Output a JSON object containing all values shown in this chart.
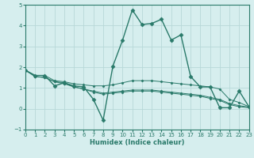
{
  "xlabel": "Humidex (Indice chaleur)",
  "ylabel": "",
  "xlim": [
    0,
    23
  ],
  "ylim": [
    -1,
    5
  ],
  "yticks": [
    -1,
    0,
    1,
    2,
    3,
    4,
    5
  ],
  "xticks": [
    0,
    1,
    2,
    3,
    4,
    5,
    6,
    7,
    8,
    9,
    10,
    11,
    12,
    13,
    14,
    15,
    16,
    17,
    18,
    19,
    20,
    21,
    22,
    23
  ],
  "background_color": "#d6eeee",
  "grid_color": "#b8d8d8",
  "line_color": "#2a7a6a",
  "lines": [
    {
      "x": [
        0,
        1,
        2,
        3,
        4,
        5,
        6,
        7,
        8,
        9,
        10,
        11,
        12,
        13,
        14,
        15,
        16,
        17,
        18,
        19,
        20,
        21,
        22,
        23
      ],
      "y": [
        1.85,
        1.6,
        1.6,
        1.1,
        1.25,
        1.1,
        1.05,
        0.45,
        -0.55,
        2.05,
        3.3,
        4.75,
        4.05,
        4.1,
        4.3,
        3.3,
        3.55,
        1.55,
        1.05,
        1.05,
        0.05,
        0.05,
        0.85,
        0.1
      ],
      "marker": "D",
      "markersize": 2.5,
      "linewidth": 1.0
    },
    {
      "x": [
        0,
        1,
        2,
        3,
        4,
        5,
        6,
        7,
        8,
        9,
        10,
        11,
        12,
        13,
        14,
        15,
        16,
        17,
        18,
        19,
        20,
        21,
        22,
        23
      ],
      "y": [
        1.85,
        1.6,
        1.6,
        1.35,
        1.3,
        1.2,
        1.15,
        1.1,
        1.1,
        1.15,
        1.25,
        1.35,
        1.35,
        1.35,
        1.3,
        1.25,
        1.2,
        1.15,
        1.1,
        1.05,
        0.95,
        0.45,
        0.3,
        0.1
      ],
      "marker": "D",
      "markersize": 1.5,
      "linewidth": 0.7
    },
    {
      "x": [
        0,
        1,
        2,
        3,
        4,
        5,
        6,
        7,
        8,
        9,
        10,
        11,
        12,
        13,
        14,
        15,
        16,
        17,
        18,
        19,
        20,
        21,
        22,
        23
      ],
      "y": [
        1.85,
        1.55,
        1.5,
        1.3,
        1.2,
        1.05,
        0.95,
        0.8,
        0.7,
        0.75,
        0.8,
        0.85,
        0.85,
        0.85,
        0.8,
        0.75,
        0.7,
        0.65,
        0.6,
        0.5,
        0.4,
        0.2,
        0.1,
        0.05
      ],
      "marker": "D",
      "markersize": 1.5,
      "linewidth": 0.7
    },
    {
      "x": [
        0,
        1,
        2,
        3,
        4,
        5,
        6,
        7,
        8,
        9,
        10,
        11,
        12,
        13,
        14,
        15,
        16,
        17,
        18,
        19,
        20,
        21,
        22,
        23
      ],
      "y": [
        1.85,
        1.55,
        1.5,
        1.3,
        1.25,
        1.05,
        0.95,
        0.85,
        0.75,
        0.8,
        0.85,
        0.9,
        0.9,
        0.9,
        0.85,
        0.8,
        0.75,
        0.7,
        0.65,
        0.55,
        0.45,
        0.25,
        0.15,
        0.08
      ],
      "marker": "D",
      "markersize": 1.5,
      "linewidth": 0.7
    }
  ]
}
